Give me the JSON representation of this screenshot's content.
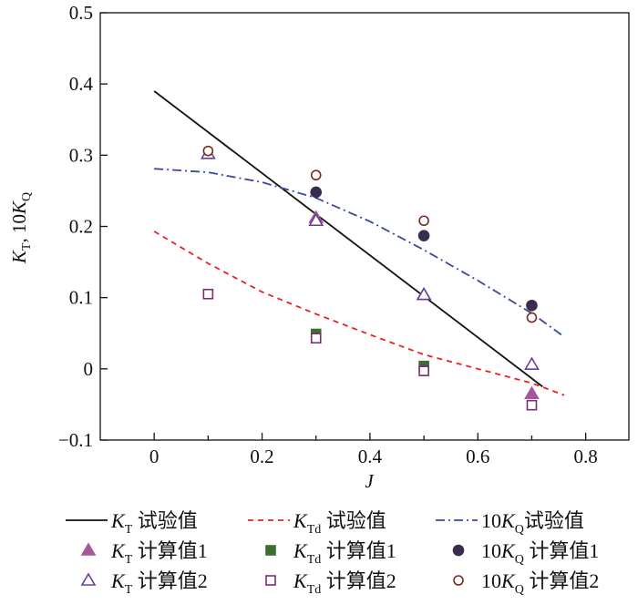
{
  "chart_data": {
    "type": "line",
    "xlabel": "J",
    "ylabel": {
      "parts": [
        {
          "t": "K",
          "italic": true
        },
        {
          "t": "T",
          "sub": true
        },
        {
          "t": ", 10"
        },
        {
          "t": "K",
          "italic": true
        },
        {
          "t": "Q",
          "sub": true
        }
      ]
    },
    "xlim": [
      -0.1,
      0.88
    ],
    "ylim": [
      -0.1,
      0.5
    ],
    "xticks": [
      "0",
      "0.2",
      "0.4",
      "0.6",
      "0.8"
    ],
    "xtick_values": [
      0,
      0.2,
      0.4,
      0.6,
      0.8
    ],
    "yticks": [
      "−0.1",
      "0",
      "0.1",
      "0.2",
      "0.3",
      "0.4",
      "0.5"
    ],
    "ytick_values": [
      -0.1,
      0,
      0.1,
      0.2,
      0.3,
      0.4,
      0.5
    ],
    "grid": false,
    "legend_position": "bottom",
    "series": [
      {
        "name": {
          "prefix": "",
          "sym": "K",
          "sub": "T",
          "suffix": " 试验值"
        },
        "kind": "line",
        "style": "solid",
        "color": "#111111",
        "x": [
          0,
          0.72
        ],
        "y": [
          0.39,
          -0.025
        ]
      },
      {
        "name": {
          "prefix": "",
          "sym": "K",
          "sub": "Td",
          "suffix": " 试验值"
        },
        "kind": "line",
        "style": "dashed",
        "color": "#e8231f",
        "x": [
          0,
          0.1,
          0.2,
          0.3,
          0.4,
          0.5,
          0.6,
          0.7,
          0.76
        ],
        "y": [
          0.193,
          0.148,
          0.108,
          0.077,
          0.048,
          0.02,
          0.0,
          -0.02,
          -0.037
        ]
      },
      {
        "name": {
          "prefix": "10",
          "sym": "K",
          "sub": "Q",
          "suffix": "试验值"
        },
        "kind": "line",
        "style": "dashdot",
        "color": "#3a4a9c",
        "x": [
          0,
          0.1,
          0.2,
          0.3,
          0.4,
          0.5,
          0.6,
          0.7,
          0.76
        ],
        "y": [
          0.281,
          0.276,
          0.262,
          0.24,
          0.207,
          0.167,
          0.124,
          0.078,
          0.045
        ]
      },
      {
        "name": {
          "prefix": "",
          "sym": "K",
          "sub": "T",
          "suffix": " 计算值1"
        },
        "kind": "marker",
        "marker": "triangle",
        "filled": true,
        "color": "#a5579c",
        "x": [
          0.3,
          0.5,
          0.7
        ],
        "y": [
          0.212,
          0.104,
          -0.035
        ]
      },
      {
        "name": {
          "prefix": "",
          "sym": "K",
          "sub": "Td",
          "suffix": " 计算值1"
        },
        "kind": "marker",
        "marker": "square",
        "filled": true,
        "color": "#3d6e2e",
        "x": [
          0.3,
          0.5
        ],
        "y": [
          0.049,
          0.004
        ]
      },
      {
        "name": {
          "prefix": "10",
          "sym": "K",
          "sub": "Q",
          "suffix": " 计算值1"
        },
        "kind": "marker",
        "marker": "circle",
        "filled": true,
        "color": "#3a2c4c",
        "x": [
          0.3,
          0.5,
          0.7
        ],
        "y": [
          0.248,
          0.187,
          0.089
        ]
      },
      {
        "name": {
          "prefix": "",
          "sym": "K",
          "sub": "T",
          "suffix": " 计算值2"
        },
        "kind": "marker",
        "marker": "triangle",
        "filled": false,
        "color": "#6a3e94",
        "x": [
          0.1,
          0.3,
          0.5,
          0.7
        ],
        "y": [
          0.302,
          0.208,
          0.104,
          0.006
        ]
      },
      {
        "name": {
          "prefix": "",
          "sym": "K",
          "sub": "Td",
          "suffix": " 计算值2"
        },
        "kind": "marker",
        "marker": "square",
        "filled": false,
        "color": "#7a2f72",
        "x": [
          0.1,
          0.3,
          0.5,
          0.7
        ],
        "y": [
          0.105,
          0.043,
          -0.003,
          -0.051
        ]
      },
      {
        "name": {
          "prefix": "10",
          "sym": "K",
          "sub": "Q",
          "suffix": " 计算值2"
        },
        "kind": "marker",
        "marker": "circle",
        "filled": false,
        "color": "#7a2a1e",
        "x": [
          0.1,
          0.3,
          0.5,
          0.7
        ],
        "y": [
          0.306,
          0.272,
          0.208,
          0.072
        ]
      }
    ]
  }
}
